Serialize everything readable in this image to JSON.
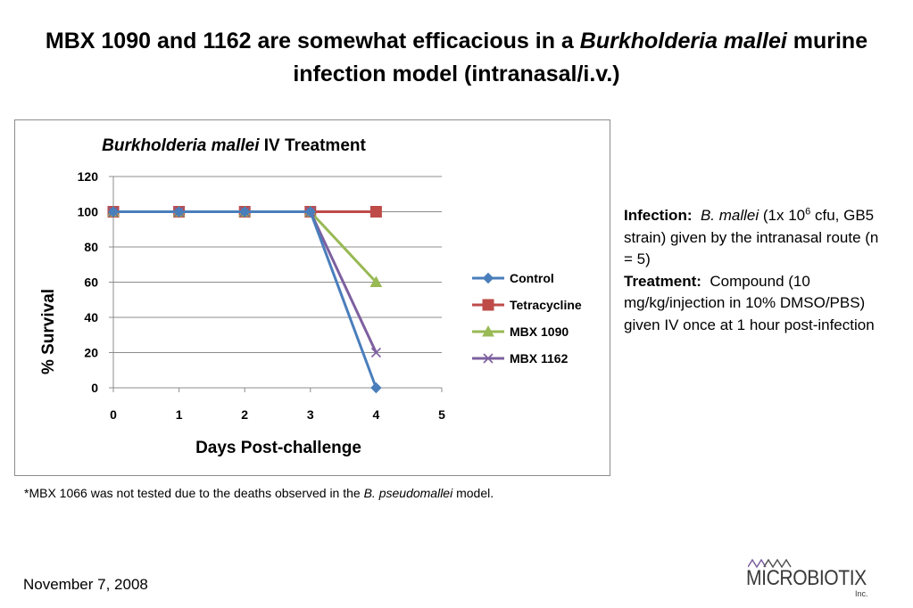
{
  "slide": {
    "title_part1": "MBX 1090 and 1162 are somewhat efficacious in a ",
    "title_italic1": "Burkholderia mallei",
    "title_part2": " murine infection model (intranasal/i.v.)",
    "footnote_part1": "*MBX 1066 was not tested due to the deaths observed in the ",
    "footnote_italic": "B. pseudomallei",
    "footnote_part2": " model.",
    "date": "November 7, 2008",
    "logo_text": "MICROBIOTIX",
    "logo_suffix": "Inc."
  },
  "info": {
    "infection_label": "Infection:",
    "infection_italic": "B. mallei",
    "infection_text1": " (1x 10",
    "infection_sup": "6",
    "infection_text2": " cfu, GB5 strain) given by the intranasal route (n = 5)",
    "treatment_label": "Treatment:",
    "treatment_text": " Compound (10 mg/kg/injection in 10% DMSO/PBS) given IV once at 1 hour post-infection"
  },
  "chart_data": {
    "type": "line",
    "title_italic": "Burkholderia mallei",
    "title_rest": " IV Treatment",
    "xlabel": "Days Post-challenge",
    "ylabel": "% Survival",
    "xlim": [
      0,
      5
    ],
    "ylim": [
      0,
      120
    ],
    "x_ticks": [
      "0",
      "1",
      "2",
      "3",
      "4",
      "5"
    ],
    "y_ticks": [
      "0",
      "20",
      "40",
      "60",
      "80",
      "100",
      "120"
    ],
    "grid": true,
    "legend_position": "right",
    "series": [
      {
        "name": "Control",
        "x": [
          0,
          1,
          2,
          3,
          4
        ],
        "values": [
          100,
          100,
          100,
          100,
          0
        ],
        "color": "#4a7ebb",
        "marker": "diamond"
      },
      {
        "name": "Tetracycline",
        "x": [
          0,
          1,
          2,
          3,
          4
        ],
        "values": [
          100,
          100,
          100,
          100,
          100
        ],
        "color": "#be4b48",
        "marker": "square"
      },
      {
        "name": "MBX 1090",
        "x": [
          0,
          1,
          2,
          3,
          4
        ],
        "values": [
          100,
          100,
          100,
          100,
          60
        ],
        "color": "#98b954",
        "marker": "triangle"
      },
      {
        "name": "MBX 1162",
        "x": [
          0,
          1,
          2,
          3,
          4
        ],
        "values": [
          100,
          100,
          100,
          100,
          20
        ],
        "color": "#7d60a0",
        "marker": "x"
      }
    ]
  }
}
